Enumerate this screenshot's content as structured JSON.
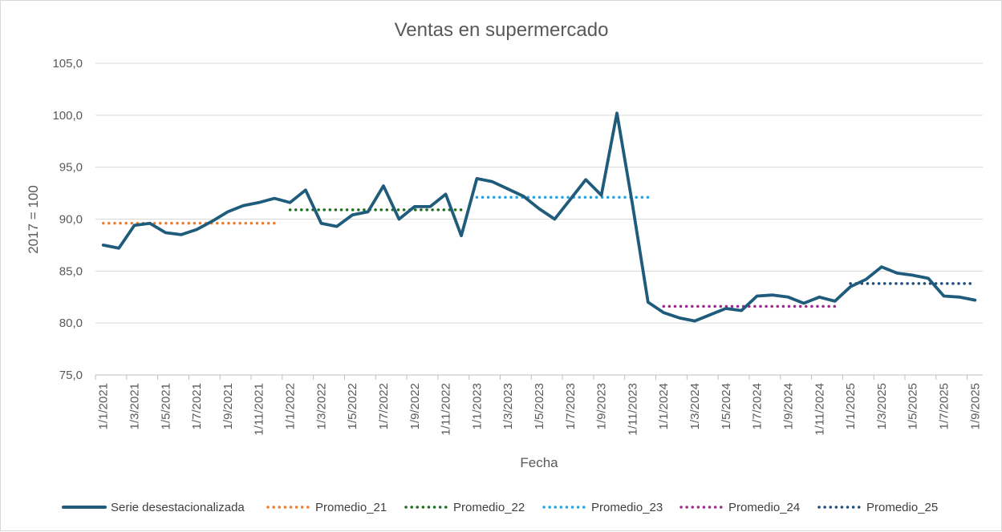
{
  "chart_data": {
    "type": "line",
    "title": "Ventas en supermercado",
    "xlabel": "Fecha",
    "ylabel": "2017 = 100",
    "ylim": [
      75,
      105
    ],
    "yticks": [
      "75,0",
      "80,0",
      "85,0",
      "90,0",
      "95,0",
      "100,0",
      "105,0"
    ],
    "ytick_values": [
      75,
      80,
      85,
      90,
      95,
      100,
      105
    ],
    "grid": true,
    "legend_position": "bottom",
    "x": [
      "1/1/2021",
      "1/2/2021",
      "1/3/2021",
      "1/4/2021",
      "1/5/2021",
      "1/6/2021",
      "1/7/2021",
      "1/8/2021",
      "1/9/2021",
      "1/10/2021",
      "1/11/2021",
      "1/12/2021",
      "1/1/2022",
      "1/2/2022",
      "1/3/2022",
      "1/4/2022",
      "1/5/2022",
      "1/6/2022",
      "1/7/2022",
      "1/8/2022",
      "1/9/2022",
      "1/10/2022",
      "1/11/2022",
      "1/12/2022",
      "1/1/2023",
      "1/2/2023",
      "1/3/2023",
      "1/4/2023",
      "1/5/2023",
      "1/6/2023",
      "1/7/2023",
      "1/8/2023",
      "1/9/2023",
      "1/10/2023",
      "1/11/2023",
      "1/12/2023",
      "1/1/2024",
      "1/2/2024",
      "1/3/2024",
      "1/4/2024",
      "1/5/2024",
      "1/6/2024",
      "1/7/2024",
      "1/8/2024",
      "1/9/2024",
      "1/10/2024",
      "1/11/2024",
      "1/12/2024",
      "1/1/2025",
      "1/2/2025",
      "1/3/2025",
      "1/4/2025",
      "1/5/2025",
      "1/6/2025",
      "1/7/2025",
      "1/8/2025",
      "1/9/2025"
    ],
    "xtick_labels": [
      "1/1/2021",
      "1/3/2021",
      "1/5/2021",
      "1/7/2021",
      "1/9/2021",
      "1/11/2021",
      "1/1/2022",
      "1/3/2022",
      "1/5/2022",
      "1/7/2022",
      "1/9/2022",
      "1/11/2022",
      "1/1/2023",
      "1/3/2023",
      "1/5/2023",
      "1/7/2023",
      "1/9/2023",
      "1/11/2023",
      "1/1/2024",
      "1/3/2024",
      "1/5/2024",
      "1/7/2024",
      "1/9/2024",
      "1/11/2024",
      "1/1/2025",
      "1/3/2025",
      "1/5/2025",
      "1/7/2025",
      "1/9/2025"
    ],
    "series": [
      {
        "name": "Serie desestacionalizada",
        "color": "#1f5b7a",
        "style": "solid",
        "values": [
          87.5,
          87.2,
          89.4,
          89.6,
          88.7,
          88.5,
          89.0,
          89.8,
          90.7,
          91.3,
          91.6,
          92.0,
          91.6,
          92.8,
          89.6,
          89.3,
          90.4,
          90.7,
          93.2,
          90.0,
          91.2,
          91.2,
          92.4,
          88.4,
          93.9,
          93.6,
          92.9,
          92.2,
          91.0,
          90.0,
          91.9,
          93.8,
          92.3,
          100.2,
          91.4,
          82.0,
          81.0,
          80.5,
          80.2,
          80.8,
          81.4,
          81.2,
          82.6,
          82.7,
          82.5,
          81.9,
          82.5,
          82.1,
          83.5,
          84.2,
          85.4,
          84.8,
          84.6,
          84.3,
          82.6,
          82.5,
          82.2
        ]
      },
      {
        "name": "Promedio_21",
        "color": "#ed7d31",
        "style": "dotted",
        "value": 89.6,
        "x_range": [
          "1/1/2021",
          "1/12/2021"
        ]
      },
      {
        "name": "Promedio_22",
        "color": "#1e6e1e",
        "style": "dotted",
        "value": 90.9,
        "x_range": [
          "1/1/2022",
          "1/12/2022"
        ]
      },
      {
        "name": "Promedio_23",
        "color": "#22a7e0",
        "style": "dotted",
        "value": 92.1,
        "x_range": [
          "1/1/2023",
          "1/12/2023"
        ]
      },
      {
        "name": "Promedio_24",
        "color": "#9c2c8f",
        "style": "dotted",
        "value": 81.6,
        "x_range": [
          "1/1/2024",
          "1/12/2024"
        ]
      },
      {
        "name": "Promedio_25",
        "color": "#1f4e79",
        "style": "dotted",
        "value": 83.8,
        "x_range": [
          "1/1/2025",
          "1/9/2025"
        ]
      }
    ]
  }
}
